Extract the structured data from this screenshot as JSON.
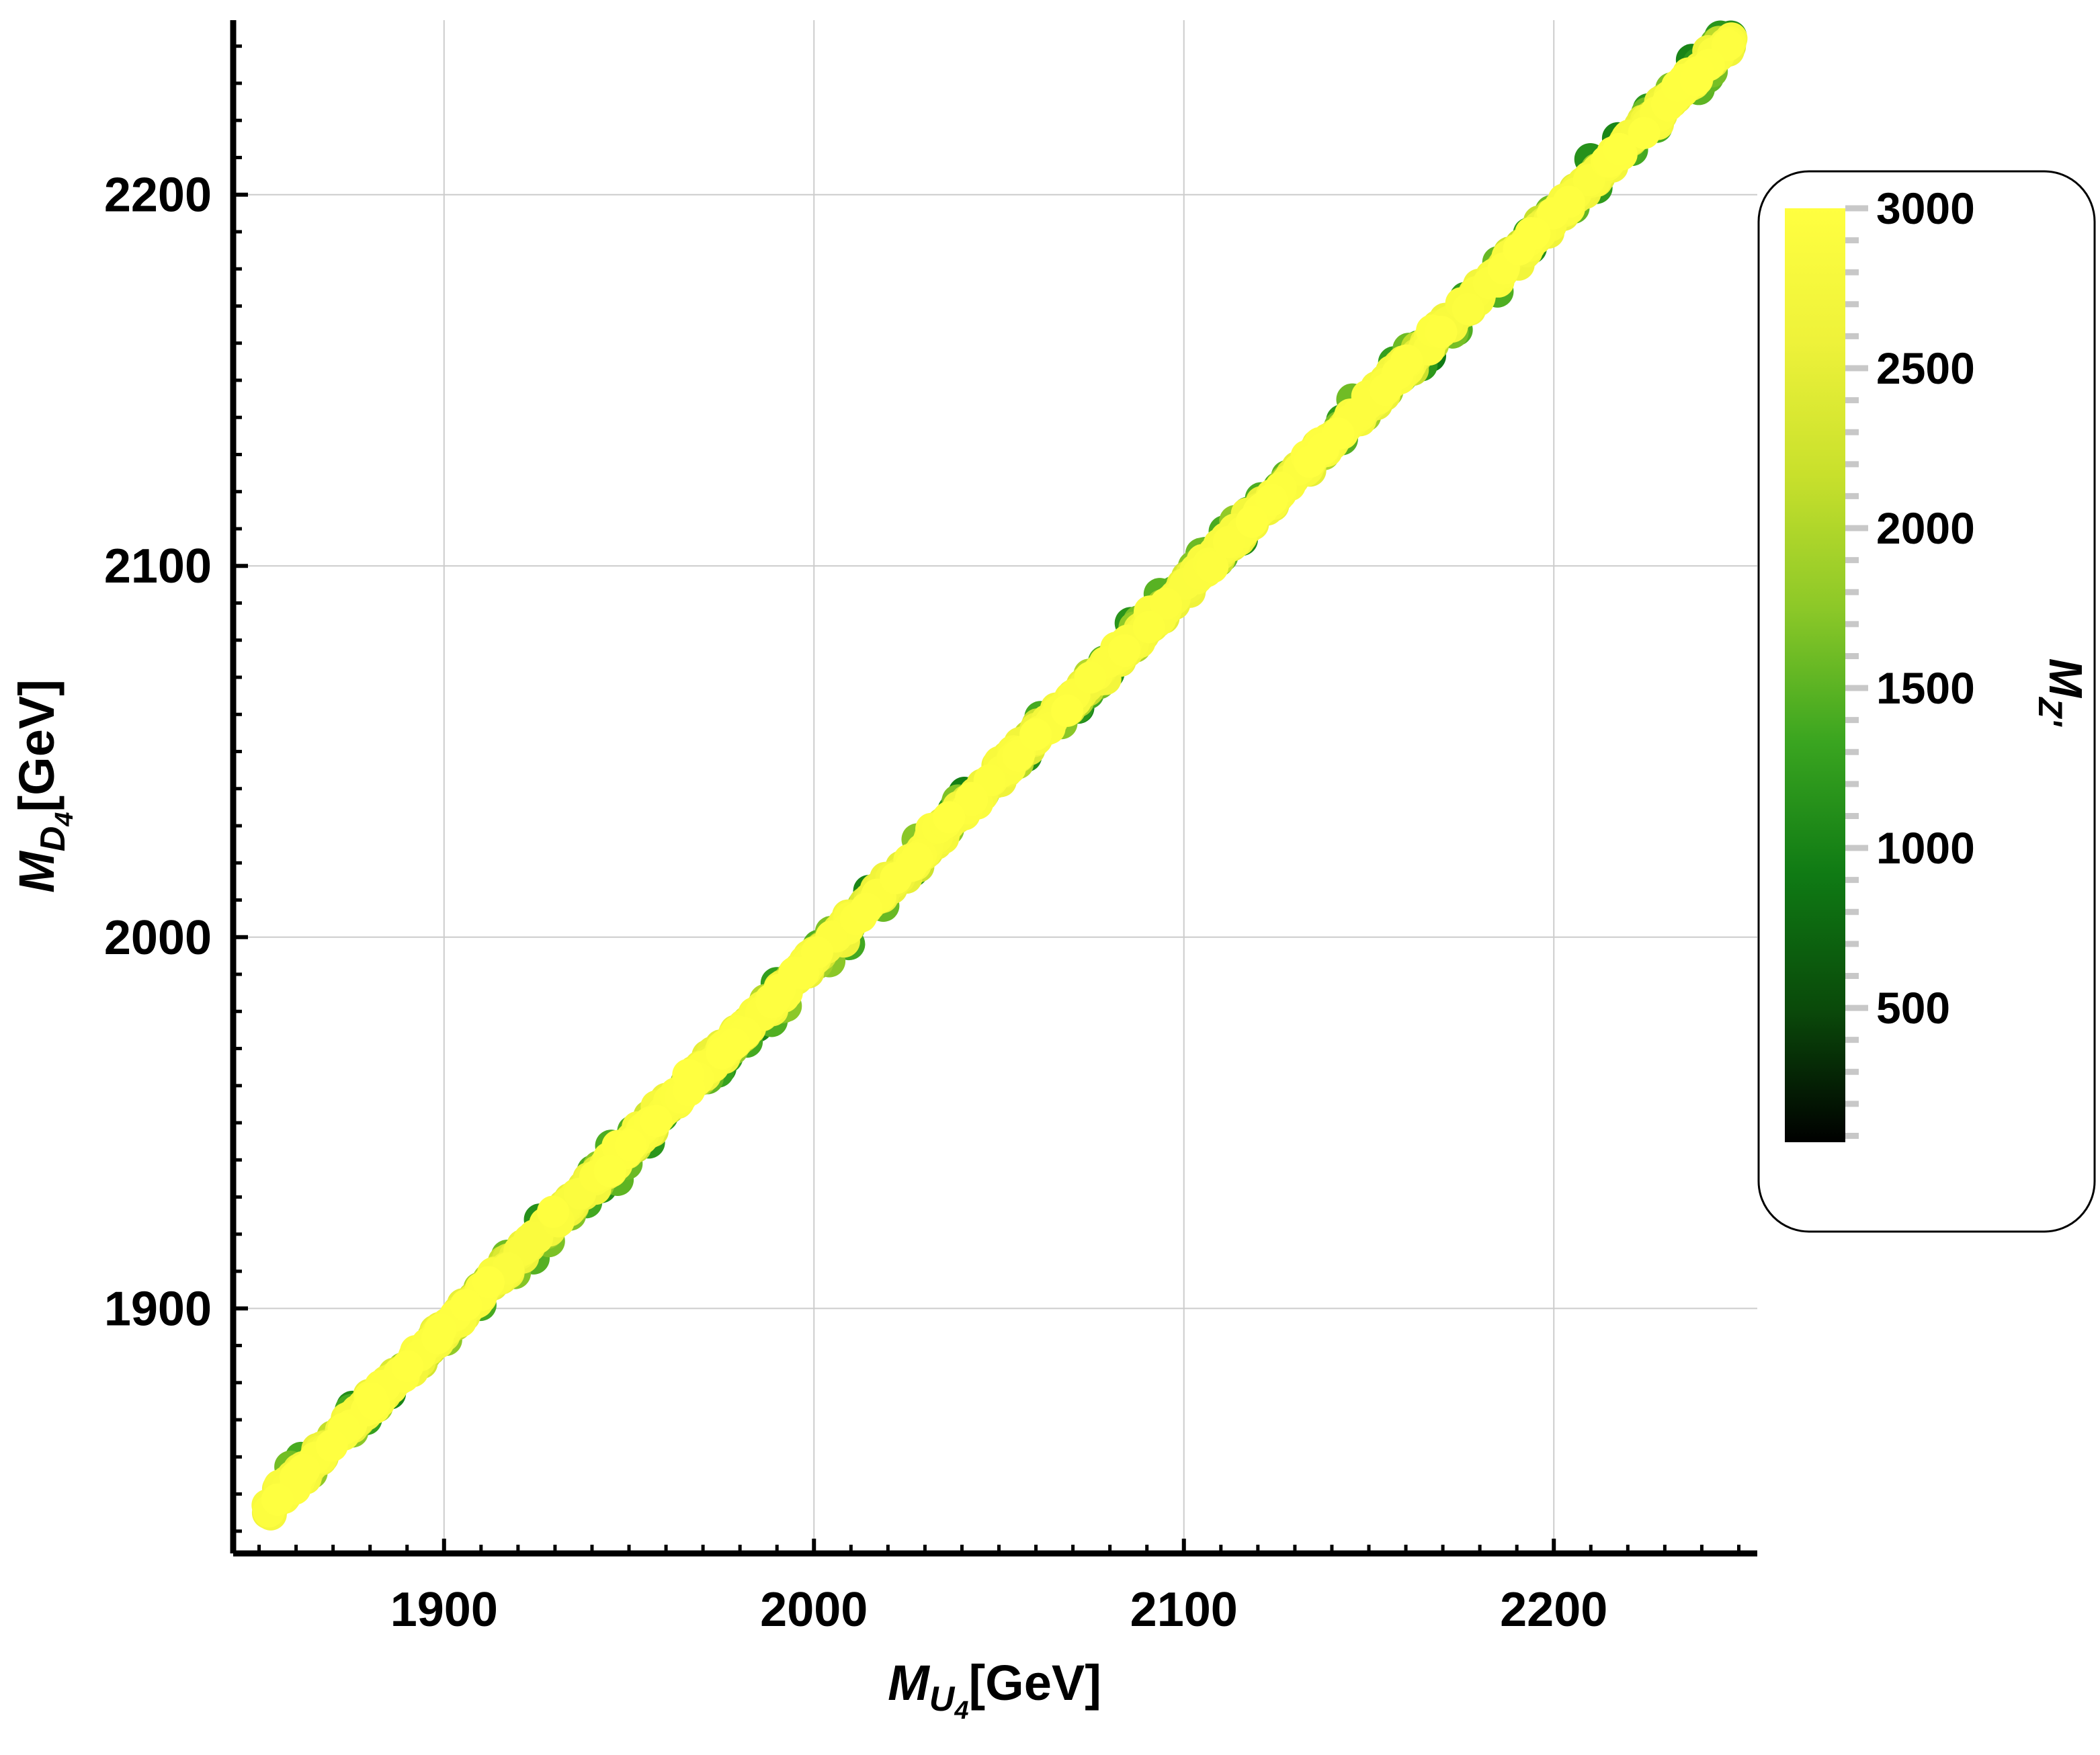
{
  "chart_data": {
    "type": "scatter",
    "title": "",
    "xlabel": {
      "main": "M",
      "sub": "U",
      "subsub": "4",
      "unit": "[GeV]"
    },
    "ylabel": {
      "main": "M",
      "sub": "D",
      "subsub": "4",
      "unit": "[GeV]"
    },
    "xlim": [
      1843,
      2255
    ],
    "ylim": [
      1834,
      2247
    ],
    "xticks": [
      1900,
      2000,
      2100,
      2200
    ],
    "yticks": [
      1900,
      2000,
      2100,
      2200
    ],
    "xtick_labels": [
      "1900",
      "2000",
      "2100",
      "2200"
    ],
    "ytick_labels": [
      "1900",
      "2000",
      "2100",
      "2200"
    ],
    "grid": true,
    "series": [
      {
        "relation": "y ≈ x",
        "x_range": [
          1852,
          2248
        ],
        "color_variable": "M_Z'",
        "color_range": [
          80,
          3000
        ]
      }
    ],
    "colorbar": {
      "label_main": "M",
      "label_sub": "Z'",
      "range": [
        80,
        3000
      ],
      "ticks": [
        500,
        1000,
        1500,
        2000,
        2500,
        3000
      ],
      "tick_labels": [
        "500",
        "1000",
        "1500",
        "2000",
        "2500",
        "3000"
      ],
      "placement": "right",
      "gradient": [
        "#000000",
        "#0a4a0a",
        "#0f7a14",
        "#3aa520",
        "#8cc828",
        "#c8e02c",
        "#eef23a",
        "#ffff40"
      ]
    }
  }
}
